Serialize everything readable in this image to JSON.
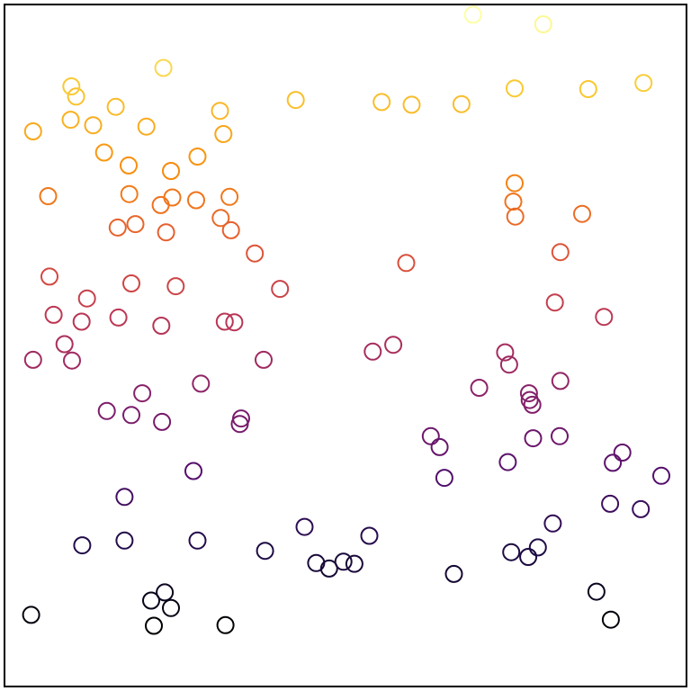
{
  "chart_data": {
    "type": "scatter",
    "title": "",
    "xlabel": "",
    "ylabel": "",
    "grid": false,
    "legend": "none",
    "colormap": "inferno",
    "color_encodes": "y",
    "marker": "open-circle",
    "xlim": [
      0,
      1
    ],
    "ylim": [
      0,
      1
    ],
    "x": [
      0.687,
      0.79,
      0.042,
      0.105,
      0.097,
      0.233,
      0.316,
      0.13,
      0.163,
      0.098,
      0.146,
      0.283,
      0.208,
      0.748,
      0.856,
      0.937,
      0.553,
      0.597,
      0.67,
      0.748,
      0.321,
      0.427,
      0.281,
      0.33,
      0.182,
      0.064,
      0.244,
      0.317,
      0.183,
      0.367,
      0.229,
      0.237,
      0.246,
      0.192,
      0.166,
      0.332,
      0.066,
      0.746,
      0.749,
      0.847,
      0.404,
      0.186,
      0.23,
      0.815,
      0.589,
      0.072,
      0.167,
      0.121,
      0.251,
      0.323,
      0.113,
      0.088,
      0.337,
      0.57,
      0.042,
      0.099,
      0.38,
      0.54,
      0.734,
      0.807,
      0.879,
      0.815,
      0.74,
      0.769,
      0.696,
      0.288,
      0.202,
      0.15,
      0.347,
      0.77,
      0.345,
      0.186,
      0.231,
      0.625,
      0.774,
      0.775,
      0.638,
      0.738,
      0.906,
      0.814,
      0.892,
      0.963,
      0.277,
      0.645,
      0.888,
      0.933,
      0.804,
      0.44,
      0.176,
      0.114,
      0.283,
      0.782,
      0.768,
      0.457,
      0.513,
      0.176,
      0.382,
      0.535,
      0.215,
      0.235,
      0.244,
      0.476,
      0.497,
      0.743,
      0.659,
      0.868,
      0.219,
      0.324,
      0.039,
      0.889
    ],
    "y": [
      0.985,
      0.971,
      0.814,
      0.865,
      0.831,
      0.907,
      0.844,
      0.823,
      0.85,
      0.88,
      0.783,
      0.777,
      0.821,
      0.877,
      0.876,
      0.885,
      0.857,
      0.853,
      0.854,
      0.738,
      0.81,
      0.86,
      0.713,
      0.718,
      0.764,
      0.719,
      0.756,
      0.687,
      0.722,
      0.635,
      0.706,
      0.666,
      0.717,
      0.678,
      0.673,
      0.669,
      0.601,
      0.711,
      0.689,
      0.693,
      0.583,
      0.591,
      0.529,
      0.637,
      0.621,
      0.545,
      0.541,
      0.569,
      0.587,
      0.535,
      0.535,
      0.502,
      0.534,
      0.501,
      0.479,
      0.478,
      0.479,
      0.491,
      0.49,
      0.563,
      0.542,
      0.448,
      0.472,
      0.43,
      0.438,
      0.444,
      0.43,
      0.404,
      0.393,
      0.42,
      0.385,
      0.398,
      0.388,
      0.367,
      0.413,
      0.364,
      0.351,
      0.329,
      0.343,
      0.367,
      0.328,
      0.309,
      0.316,
      0.306,
      0.268,
      0.26,
      0.239,
      0.234,
      0.278,
      0.207,
      0.214,
      0.204,
      0.19,
      0.181,
      0.18,
      0.214,
      0.199,
      0.221,
      0.126,
      0.138,
      0.115,
      0.173,
      0.183,
      0.197,
      0.165,
      0.139,
      0.089,
      0.09,
      0.105,
      0.098
    ]
  }
}
